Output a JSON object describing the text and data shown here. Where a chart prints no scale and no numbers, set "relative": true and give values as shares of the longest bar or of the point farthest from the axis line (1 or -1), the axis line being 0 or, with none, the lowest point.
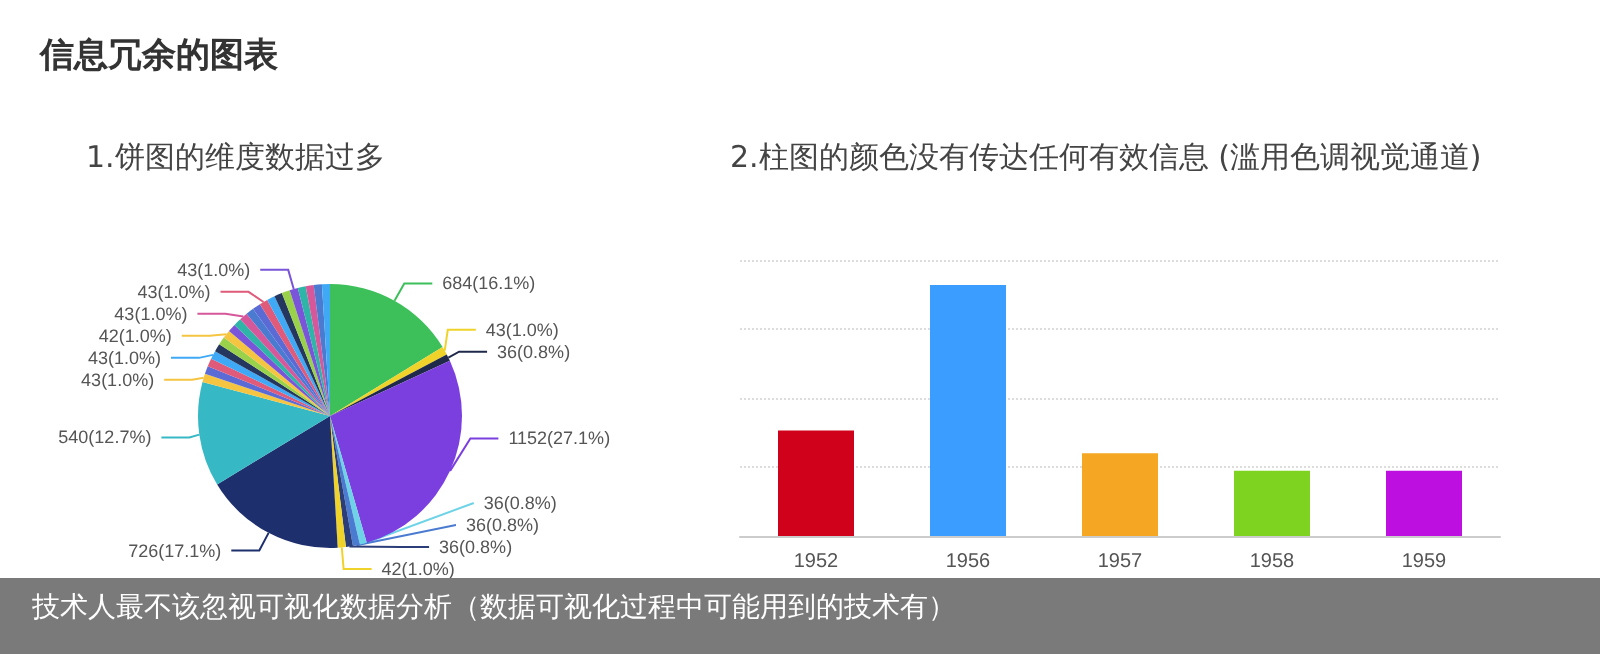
{
  "chart_data": [
    {
      "type": "pie",
      "title": "1.饼图的维度数据过多",
      "annotations": [
        "信息冗余的图表",
        "技术人最不该忽视可视化数据分析（数据可视化过程中可能用到的技术有）"
      ],
      "categories": [
        null,
        null,
        null,
        null,
        null,
        null,
        null,
        null,
        null,
        null,
        null,
        null,
        null,
        null,
        null,
        null,
        null,
        null,
        null,
        null,
        null,
        null,
        null,
        null,
        null,
        null,
        null,
        null,
        null,
        null,
        null
      ],
      "values": [
        684,
        43,
        36,
        1152,
        36,
        36,
        36,
        42,
        726,
        540,
        43,
        41,
        42,
        43,
        41,
        41,
        42,
        42,
        41,
        43,
        41,
        42,
        43,
        41,
        41,
        42,
        43,
        41,
        41,
        42,
        41
      ],
      "colors": [
        "#3dbf5a",
        "#f0d32a",
        "#1f2a4a",
        "#7b3fe0",
        "#6fd3e8",
        "#4a7bd1",
        "#2c3e7a",
        "#f0d32a",
        "#1e2f6e",
        "#36b9c4",
        "#f5c542",
        "#5b6bd6",
        "#e05a7a",
        "#3fa9f5",
        "#26375f",
        "#9ad14b",
        "#f5c542",
        "#7a55d9",
        "#2fb5a8",
        "#d6589b",
        "#4a7bd1",
        "#5b6bd6",
        "#e05a7a",
        "#3fa9f5",
        "#26375f",
        "#9ad14b",
        "#7a55d9",
        "#2fb5a8",
        "#d6589b",
        "#4a7bd1",
        "#3fa9f5"
      ],
      "value_labels": [
        "684(16.1%)",
        "43(1.0%)",
        "36(0.8%)",
        "1152(27.1%)",
        "36(0.8%)",
        "36(0.8%)",
        "36(0.8%)",
        "42(1.0%)",
        "726(17.1%)",
        "540(12.7%)",
        "43(1.0%)",
        null,
        null,
        "43(1.0%)",
        null,
        null,
        "42(1.0%)",
        null,
        null,
        "43(1.0%)",
        null,
        null,
        "43(1.0%)",
        null,
        null,
        null,
        "43(1.0%)",
        null,
        null,
        null,
        null
      ]
    },
    {
      "type": "bar",
      "title": "2.柱图的颜色没有传达任何有效信息 (滥用色调视觉通道)",
      "relative": true,
      "grid": "y",
      "categories": [
        "1952",
        "1956",
        "1957",
        "1958",
        "1959"
      ],
      "values": [
        0.42,
        1,
        0.33,
        0.26,
        0.26
      ],
      "colors": [
        "#d0021b",
        "#3b9dff",
        "#f5a623",
        "#7ed321",
        "#bd10e0"
      ]
    }
  ]
}
